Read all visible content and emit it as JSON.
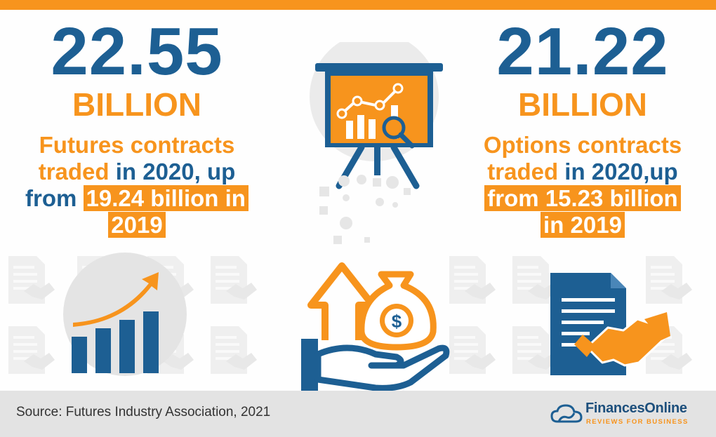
{
  "left_stat": {
    "number": "22.55",
    "unit": "BILLION",
    "desc_part1": "Futures contracts",
    "desc_part2": "traded",
    "desc_part3": " in 2020, up",
    "desc_part4": "from ",
    "desc_highlight1": "19.24 billion in",
    "desc_highlight2": "2019"
  },
  "right_stat": {
    "number": "21.22",
    "unit": "BILLION",
    "desc_part1": "Options contracts",
    "desc_part2": "traded",
    "desc_part3": " in 2020,up",
    "desc_highlight1": "from 15.23 billion",
    "desc_highlight2": "in 2019"
  },
  "footer": {
    "source": "Source: Futures Industry Association, 2021",
    "brand_name": "FinancesOnline",
    "brand_tagline": "REVIEWS FOR BUSINESS"
  },
  "colors": {
    "orange": "#f7941d",
    "blue": "#1d5f93",
    "footer_bg": "#e3e3e3"
  },
  "icons": [
    "presentation-chart-icon",
    "growth-chart-icon",
    "money-bag-hand-icon",
    "contract-handshake-icon",
    "financesonline-logo-icon"
  ]
}
